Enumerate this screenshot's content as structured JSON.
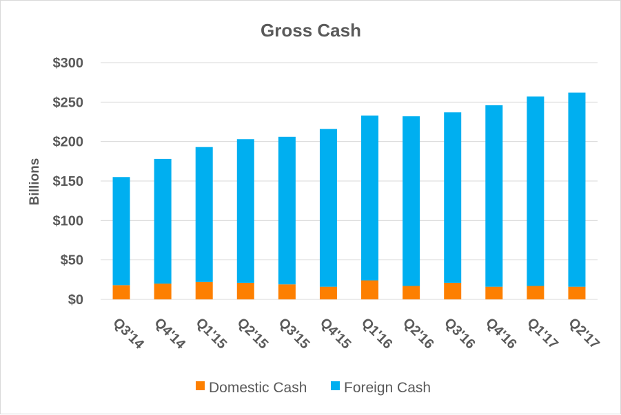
{
  "chart_data": {
    "type": "bar",
    "stacked": true,
    "title": "Gross Cash",
    "ylabel": "Billions",
    "xlabel": "",
    "ylim": [
      0,
      300
    ],
    "ytick_step": 50,
    "ytick_labels": [
      "$0",
      "$50",
      "$100",
      "$150",
      "$200",
      "$250",
      "$300"
    ],
    "grid": true,
    "legend_position": "bottom",
    "categories": [
      "Q3'14",
      "Q4'14",
      "Q1'15",
      "Q2'15",
      "Q3'15",
      "Q4'15",
      "Q1'16",
      "Q2'16",
      "Q3'16",
      "Q4'16",
      "Q1'17",
      "Q2'17"
    ],
    "series": [
      {
        "name": "Domestic Cash",
        "color": "#fd7f00",
        "values": [
          18,
          20,
          22,
          21,
          19,
          16,
          24,
          17,
          21,
          16,
          17,
          16
        ]
      },
      {
        "name": "Foreign Cash",
        "color": "#00aff0",
        "values": [
          137,
          158,
          171,
          182,
          187,
          200,
          209,
          215,
          216,
          230,
          240,
          246
        ]
      }
    ]
  }
}
